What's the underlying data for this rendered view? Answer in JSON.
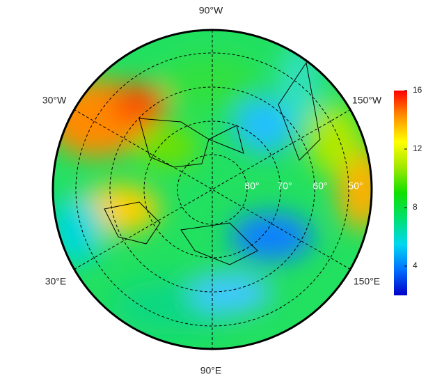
{
  "map": {
    "longitude_labels": [
      "90°W",
      "30°W",
      "150°W",
      "30°E",
      "150°E",
      "90°E"
    ],
    "latitude_labels": [
      "80°",
      "70°",
      "60°",
      "50°"
    ]
  },
  "colorbar": {
    "lim": [
      2,
      16
    ],
    "ticks": [
      4,
      8,
      12,
      16
    ],
    "colors": [
      "#0000c8",
      "#0070ff",
      "#00d8f0",
      "#00e070",
      "#10e000",
      "#a0e800",
      "#ffff00",
      "#ff9000",
      "#ff0000"
    ]
  }
}
